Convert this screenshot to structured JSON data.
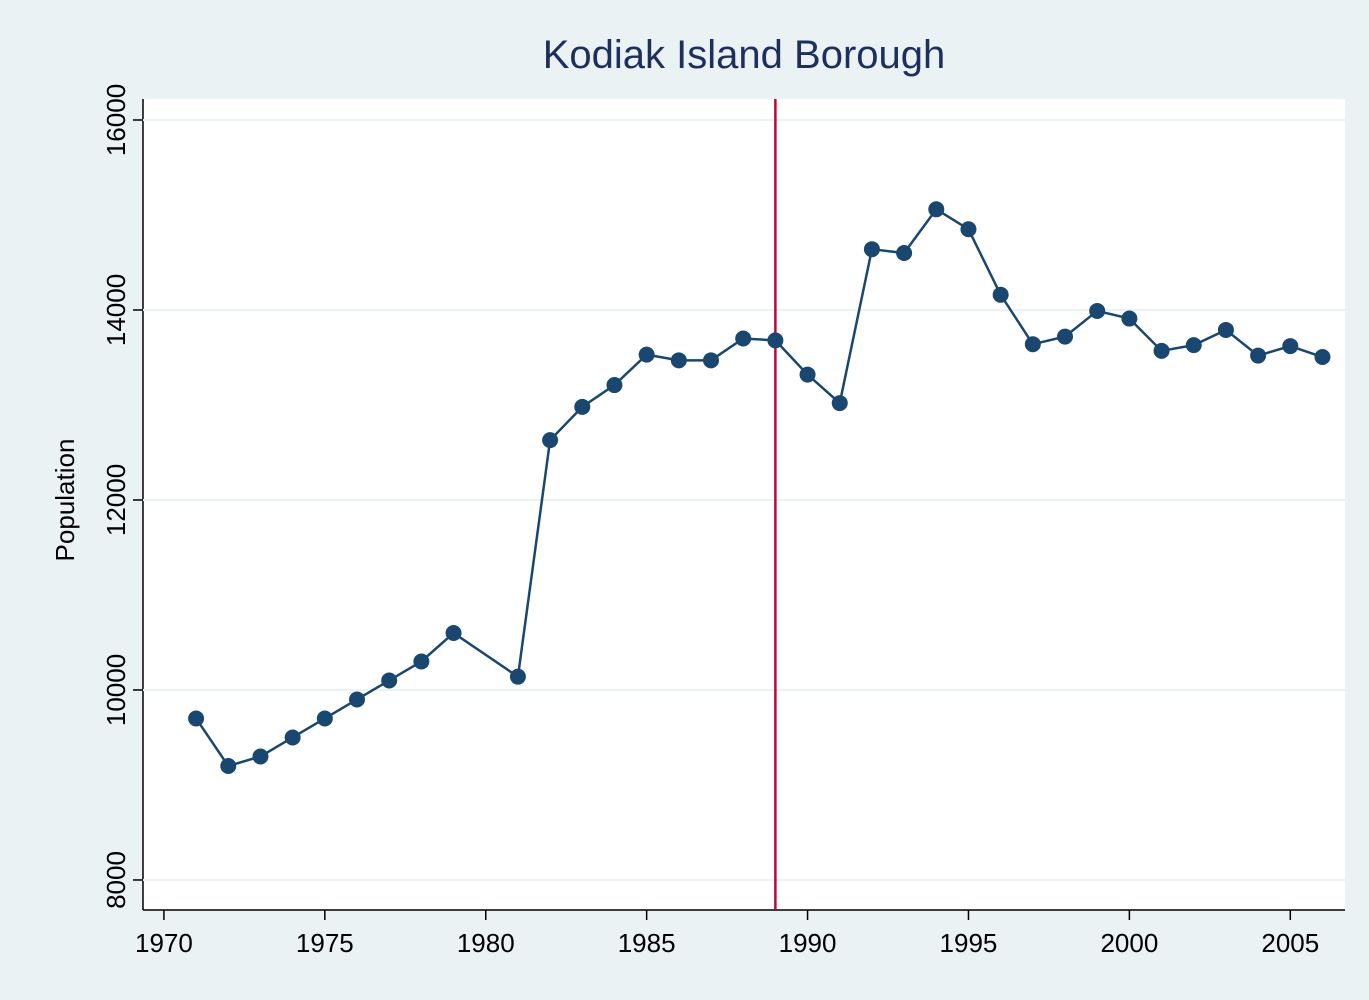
{
  "chart_data": {
    "type": "line",
    "title": "Kodiak Island Borough",
    "y_label": "Population",
    "x": [
      1971,
      1972,
      1973,
      1974,
      1975,
      1976,
      1977,
      1978,
      1979,
      1981,
      1982,
      1983,
      1984,
      1985,
      1986,
      1987,
      1988,
      1989,
      1990,
      1991,
      1992,
      1993,
      1994,
      1995,
      1996,
      1997,
      1998,
      1999,
      2000,
      2001,
      2002,
      2003,
      2004,
      2005,
      2006
    ],
    "series": [
      {
        "color": "#1a476f",
        "values": [
          9700,
          9200,
          9300,
          9500,
          9700,
          9900,
          10100,
          10300,
          10600,
          10140,
          12630,
          12980,
          13210,
          13530,
          13470,
          13470,
          13700,
          13680,
          13320,
          13020,
          14640,
          14600,
          15060,
          14850,
          14160,
          13640,
          13720,
          13990,
          13910,
          13570,
          13630,
          13790,
          13520,
          13620,
          13505
        ]
      }
    ],
    "reference_line": {
      "x": 1989,
      "color": "#c10534"
    },
    "xlim": [
      1969.35,
      2006.7
    ],
    "xticks": [
      1970,
      1975,
      1980,
      1985,
      1990,
      1995,
      2000,
      2005
    ],
    "ylim": [
      7684,
      16221
    ],
    "yticks": [
      8000,
      10000,
      12000,
      14000,
      16000
    ],
    "grid": true
  }
}
